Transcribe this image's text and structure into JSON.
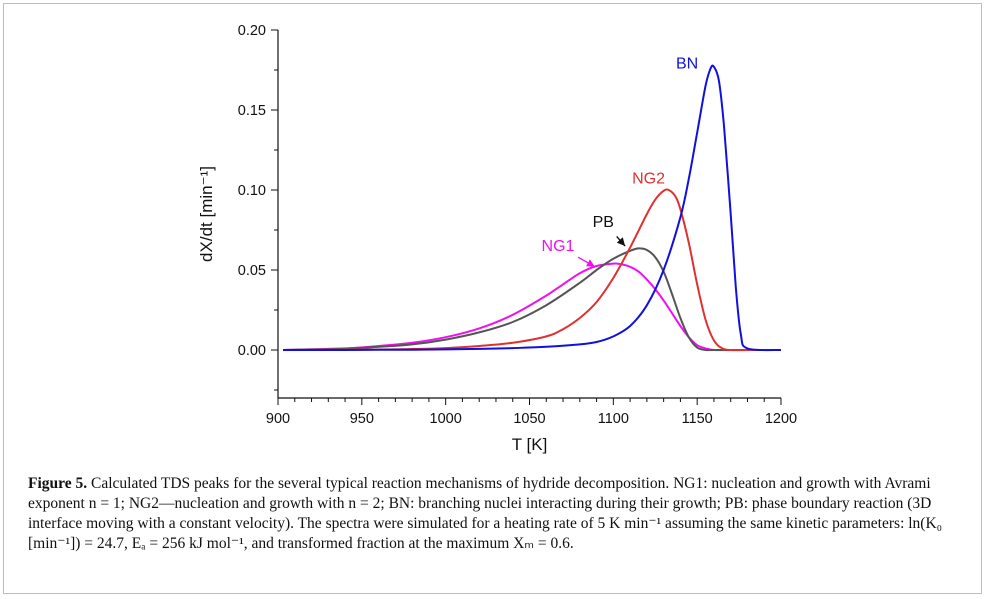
{
  "chart_data": {
    "type": "line",
    "xlabel": "T [K]",
    "ylabel": "dX/dt [min⁻¹]",
    "xlim": [
      900,
      1200
    ],
    "ylim": [
      -0.03,
      0.2
    ],
    "xticks": [
      "900",
      "950",
      "1000",
      "1050",
      "1100",
      "1150",
      "1200"
    ],
    "yticks": [
      "0.00",
      "0.05",
      "0.10",
      "0.15",
      "0.20"
    ],
    "series": [
      {
        "name": "NG1",
        "color": "#ee11ee",
        "x": [
          903,
          920,
          940,
          960,
          980,
          1000,
          1020,
          1040,
          1060,
          1070,
          1080,
          1090,
          1100,
          1105,
          1110,
          1115,
          1120,
          1125,
          1130,
          1135,
          1140,
          1145,
          1150,
          1155,
          1160,
          1170,
          1180,
          1200
        ],
        "y": [
          0.0,
          0.0005,
          0.001,
          0.0025,
          0.0045,
          0.008,
          0.0135,
          0.022,
          0.034,
          0.041,
          0.048,
          0.0525,
          0.054,
          0.0535,
          0.052,
          0.049,
          0.044,
          0.038,
          0.031,
          0.023,
          0.015,
          0.008,
          0.003,
          0.001,
          0.0,
          0.0,
          0.0,
          0.0
        ]
      },
      {
        "name": "PB",
        "color": "#555555",
        "x": [
          903,
          920,
          940,
          960,
          980,
          1000,
          1020,
          1040,
          1060,
          1080,
          1090,
          1100,
          1110,
          1115,
          1120,
          1125,
          1130,
          1135,
          1140,
          1145,
          1150,
          1155,
          1160,
          1180,
          1200
        ],
        "y": [
          0.0,
          0.0003,
          0.0008,
          0.002,
          0.0035,
          0.0065,
          0.011,
          0.0175,
          0.028,
          0.042,
          0.05,
          0.057,
          0.062,
          0.0635,
          0.0625,
          0.058,
          0.049,
          0.035,
          0.02,
          0.008,
          0.0015,
          0.0,
          0.0,
          0.0,
          0.0
        ]
      },
      {
        "name": "NG2",
        "color": "#e03030",
        "x": [
          903,
          920,
          940,
          960,
          980,
          1000,
          1020,
          1040,
          1060,
          1070,
          1080,
          1090,
          1100,
          1110,
          1120,
          1125,
          1130,
          1133,
          1137,
          1140,
          1145,
          1150,
          1155,
          1160,
          1165,
          1170,
          1180,
          1200
        ],
        "y": [
          0.0,
          0.0,
          0.0001,
          0.0003,
          0.0006,
          0.0012,
          0.0025,
          0.0045,
          0.0085,
          0.013,
          0.02,
          0.03,
          0.045,
          0.064,
          0.085,
          0.094,
          0.0995,
          0.1,
          0.096,
          0.088,
          0.067,
          0.041,
          0.019,
          0.006,
          0.001,
          0.0,
          0.0,
          0.0
        ]
      },
      {
        "name": "BN",
        "color": "#1010e0",
        "x": [
          903,
          920,
          940,
          960,
          980,
          1000,
          1020,
          1040,
          1060,
          1080,
          1090,
          1100,
          1110,
          1120,
          1130,
          1140,
          1145,
          1150,
          1155,
          1158,
          1160,
          1163,
          1166,
          1170,
          1173,
          1176,
          1180,
          1200
        ],
        "y": [
          0.0,
          0.0,
          0.0,
          0.0001,
          0.0002,
          0.0004,
          0.0007,
          0.0012,
          0.002,
          0.0035,
          0.005,
          0.0085,
          0.015,
          0.028,
          0.05,
          0.083,
          0.107,
          0.136,
          0.165,
          0.176,
          0.177,
          0.168,
          0.14,
          0.085,
          0.04,
          0.01,
          0.001,
          0.0
        ]
      }
    ],
    "annotations": [
      {
        "text": "BN",
        "color": "#1010e0"
      },
      {
        "text": "NG2",
        "color": "#e03030"
      },
      {
        "text": "PB",
        "color": "#111111"
      },
      {
        "text": "NG1",
        "color": "#ee11ee"
      }
    ],
    "grid": false,
    "legend": "none"
  },
  "caption": {
    "label": "Figure 5.",
    "text": "Calculated TDS peaks for the several typical reaction mechanisms of hydride decomposition. NG1: nucleation and growth with Avrami exponent n = 1; NG2—nucleation and growth with n = 2; BN: branching nuclei interacting during their growth; PB: phase boundary reaction (3D interface moving with a constant velocity). The spectra were simulated for a heating rate of 5 K min⁻¹ assuming the same kinetic parameters: ln(K₀ [min⁻¹]) = 24.7, Eₐ = 256 kJ mol⁻¹, and transformed fraction at the maximum Xₘ = 0.6."
  }
}
